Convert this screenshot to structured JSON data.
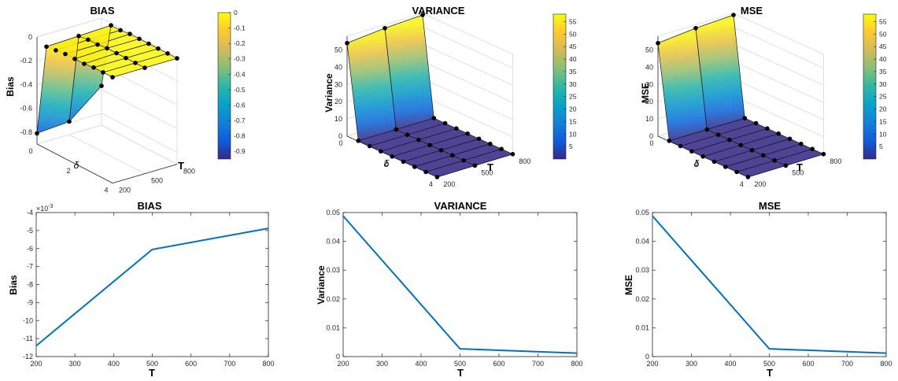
{
  "colors": {
    "line": "#0072BD",
    "marker": "#000000",
    "axis": "#262626",
    "grid": "#d9d9d9",
    "parula": [
      "#352a87",
      "#0f5cdd",
      "#1481d6",
      "#06a4ca",
      "#2eb7a4",
      "#87bf77",
      "#d1bb59",
      "#fec832",
      "#f9fb0e"
    ]
  },
  "chart_data": [
    {
      "type": "surface",
      "title": "BIAS",
      "zlabel": "Bias",
      "xlabel": "δ",
      "ylabel": "T",
      "x_ticks": [
        "0",
        "2",
        "4"
      ],
      "y_ticks": [
        "200",
        "500",
        "800"
      ],
      "z_ticks": [
        "-0.8",
        "-0.6",
        "-0.4",
        "-0.2",
        "0"
      ],
      "zlim": [
        -0.9,
        0
      ],
      "colorbar": {
        "ticks": [
          "0",
          "-0.1",
          "-0.2",
          "-0.3",
          "-0.4",
          "-0.5",
          "-0.6",
          "-0.7",
          "-0.8",
          "-0.9"
        ],
        "range": [
          -0.95,
          0
        ]
      },
      "delta": [
        0,
        0.5,
        1,
        1.5,
        2,
        2.5,
        3,
        3.5,
        4
      ],
      "T": [
        200,
        500,
        800
      ],
      "z": [
        [
          -0.81,
          -0.79,
          -0.57
        ],
        [
          -0.04,
          -0.03,
          -0.02
        ],
        [
          -0.03,
          -0.02,
          -0.02
        ],
        [
          -0.02,
          -0.02,
          -0.01
        ],
        [
          -0.02,
          -0.01,
          -0.01
        ],
        [
          -0.02,
          -0.01,
          -0.01
        ],
        [
          -0.01,
          -0.01,
          -0.01
        ],
        [
          -0.01,
          -0.01,
          -0.01
        ],
        [
          -0.01,
          -0.01,
          -0.01
        ]
      ]
    },
    {
      "type": "surface",
      "title": "VARIANCE",
      "zlabel": "Variance",
      "xlabel": "δ",
      "ylabel": "T",
      "x_ticks": [
        "0",
        "2",
        "4"
      ],
      "y_ticks": [
        "200",
        "500",
        "800"
      ],
      "z_ticks": [
        "0",
        "10",
        "20",
        "30",
        "40",
        "50"
      ],
      "zlim": [
        0,
        58
      ],
      "colorbar": {
        "ticks": [
          "55",
          "50",
          "45",
          "40",
          "35",
          "30",
          "25",
          "20",
          "15",
          "10",
          "5"
        ],
        "range": [
          0,
          58
        ]
      },
      "delta": [
        0,
        0.5,
        1,
        1.5,
        2,
        2.5,
        3,
        3.5,
        4
      ],
      "T": [
        200,
        500,
        800
      ],
      "z": [
        [
          54,
          56,
          57
        ],
        [
          0.3,
          0.2,
          0.1
        ],
        [
          0.2,
          0.1,
          0.1
        ],
        [
          0.1,
          0.1,
          0.05
        ],
        [
          0.1,
          0.05,
          0.03
        ],
        [
          0.05,
          0.03,
          0.02
        ],
        [
          0.05,
          0.02,
          0.02
        ],
        [
          0.05,
          0.02,
          0.01
        ],
        [
          0.05,
          0.02,
          0.01
        ]
      ]
    },
    {
      "type": "surface",
      "title": "MSE",
      "zlabel": "MSE",
      "xlabel": "δ",
      "ylabel": "T",
      "x_ticks": [
        "0",
        "2",
        "4"
      ],
      "y_ticks": [
        "200",
        "500",
        "800"
      ],
      "z_ticks": [
        "0",
        "10",
        "20",
        "30",
        "40",
        "50"
      ],
      "zlim": [
        0,
        58
      ],
      "colorbar": {
        "ticks": [
          "55",
          "50",
          "45",
          "40",
          "35",
          "30",
          "25",
          "20",
          "15",
          "10",
          "5"
        ],
        "range": [
          0,
          58
        ]
      },
      "delta": [
        0,
        0.5,
        1,
        1.5,
        2,
        2.5,
        3,
        3.5,
        4
      ],
      "T": [
        200,
        500,
        800
      ],
      "z": [
        [
          54,
          56,
          57
        ],
        [
          0.3,
          0.2,
          0.1
        ],
        [
          0.2,
          0.1,
          0.1
        ],
        [
          0.1,
          0.1,
          0.05
        ],
        [
          0.1,
          0.05,
          0.03
        ],
        [
          0.05,
          0.03,
          0.02
        ],
        [
          0.05,
          0.02,
          0.02
        ],
        [
          0.05,
          0.02,
          0.01
        ],
        [
          0.05,
          0.02,
          0.01
        ]
      ]
    },
    {
      "type": "line",
      "title": "BIAS",
      "xlabel": "T",
      "ylabel": "Bias",
      "exponent_label": "×10",
      "exponent_power": "-3",
      "x": [
        200,
        500,
        800
      ],
      "y": [
        -11.4,
        -6.05,
        -4.88
      ],
      "xlim": [
        200,
        800
      ],
      "ylim": [
        -12,
        -4
      ],
      "x_ticks": [
        "200",
        "300",
        "400",
        "500",
        "600",
        "700",
        "800"
      ],
      "y_ticks": [
        "-12",
        "-11",
        "-10",
        "-9",
        "-8",
        "-7",
        "-6",
        "-5",
        "-4"
      ]
    },
    {
      "type": "line",
      "title": "VARIANCE",
      "xlabel": "T",
      "ylabel": "Variance",
      "x": [
        200,
        500,
        800
      ],
      "y": [
        0.0488,
        0.0027,
        0.0012
      ],
      "xlim": [
        200,
        800
      ],
      "ylim": [
        0,
        0.05
      ],
      "x_ticks": [
        "200",
        "300",
        "400",
        "500",
        "600",
        "700",
        "800"
      ],
      "y_ticks": [
        "0",
        "0.01",
        "0.02",
        "0.03",
        "0.04",
        "0.05"
      ]
    },
    {
      "type": "line",
      "title": "MSE",
      "xlabel": "T",
      "ylabel": "MSE",
      "x": [
        200,
        500,
        800
      ],
      "y": [
        0.0488,
        0.0027,
        0.0012
      ],
      "xlim": [
        200,
        800
      ],
      "ylim": [
        0,
        0.05
      ],
      "x_ticks": [
        "200",
        "300",
        "400",
        "500",
        "600",
        "700",
        "800"
      ],
      "y_ticks": [
        "0",
        "0.01",
        "0.02",
        "0.03",
        "0.04",
        "0.05"
      ]
    }
  ]
}
